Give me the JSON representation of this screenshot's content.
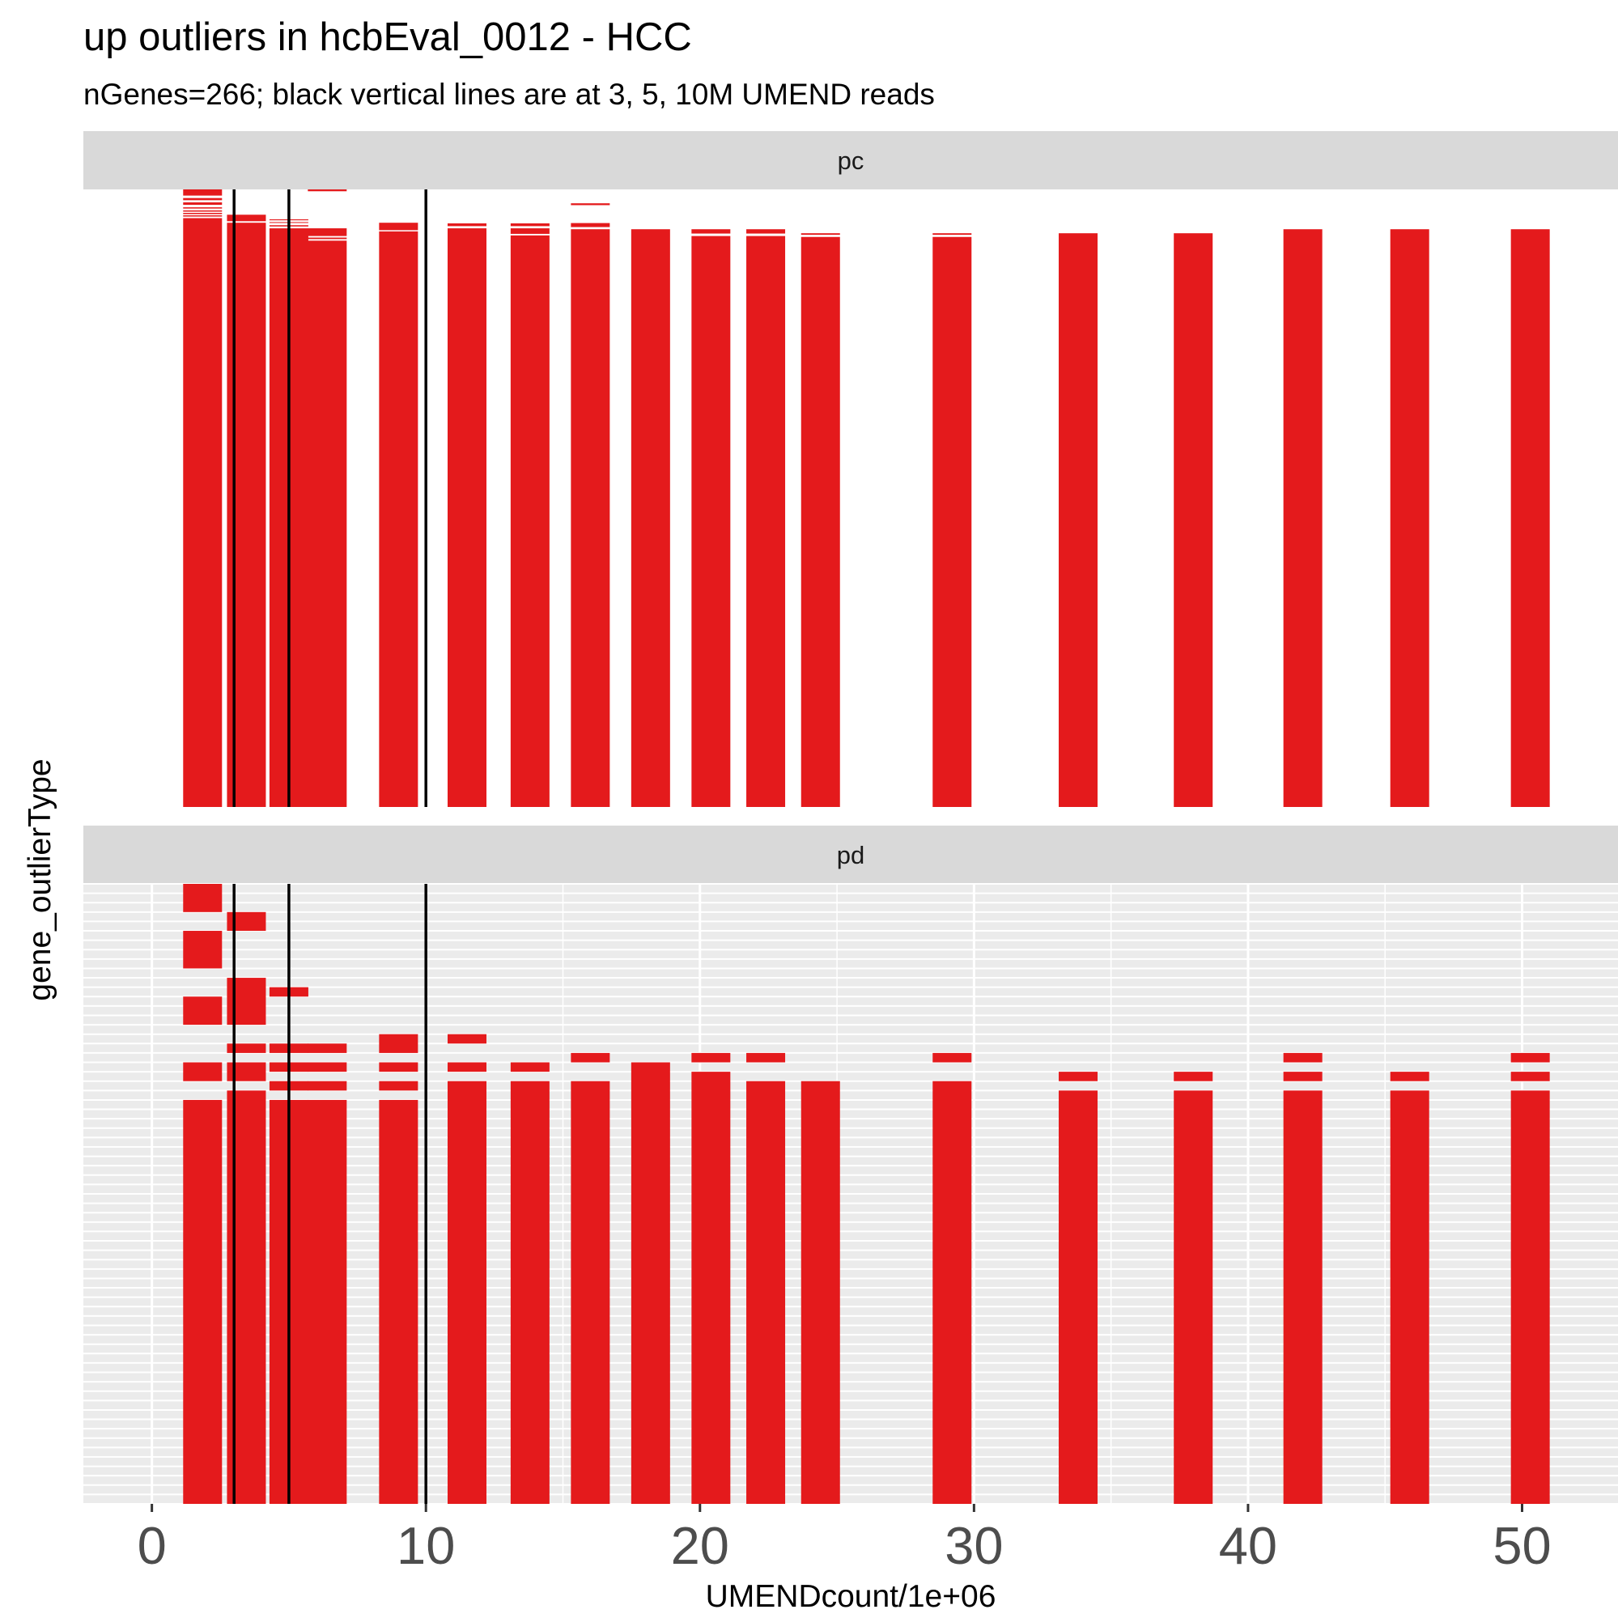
{
  "title": "up outliers in hcbEval_0012 - HCC",
  "subtitle": "nGenes=266; black vertical lines are at 3, 5, 10M UMEND reads",
  "chart_data": {
    "type": "heatmap",
    "xlabel": "UMENDcount/1e+06",
    "ylabel": "gene_outlierType",
    "xlim": [
      -2.5,
      53.5
    ],
    "x_ticks": [
      0,
      10,
      20,
      30,
      40,
      50
    ],
    "x_tick_labels": [
      "0",
      "10",
      "20",
      "30",
      "40",
      "50"
    ],
    "vlines": [
      3,
      5,
      10
    ],
    "fill_color": "#e41a1c",
    "vline_color": "#000000",
    "facets": [
      {
        "name": "pc",
        "row_count": 200,
        "grid": false,
        "columns": [
          {
            "x": 1.85,
            "segments": [
              [
                0,
                2
              ],
              [
                2.8,
                3.5
              ],
              [
                4.2,
                5
              ],
              [
                5.8,
                6.2
              ],
              [
                6.8,
                7.2
              ],
              [
                7.6,
                8
              ],
              [
                8.4,
                8.8
              ],
              [
                9.3,
                200
              ]
            ]
          },
          {
            "x": 3.45,
            "segments": [
              [
                8.2,
                10.3
              ],
              [
                10.8,
                200
              ]
            ]
          },
          {
            "x": 5.0,
            "segments": [
              [
                9.7,
                10
              ],
              [
                10.6,
                10.8
              ],
              [
                11.6,
                12
              ],
              [
                12.6,
                200
              ]
            ]
          },
          {
            "x": 6.4,
            "segments": [
              [
                0,
                0.6
              ],
              [
                12.6,
                15.1
              ],
              [
                15.6,
                16.1
              ],
              [
                16.6,
                200
              ]
            ]
          },
          {
            "x": 9.0,
            "segments": [
              [
                10.8,
                13.2
              ],
              [
                13.6,
                200
              ]
            ]
          },
          {
            "x": 11.5,
            "segments": [
              [
                11.0,
                11.9
              ],
              [
                12.6,
                200
              ]
            ]
          },
          {
            "x": 13.8,
            "segments": [
              [
                11.0,
                11.9
              ],
              [
                12.6,
                14.4
              ],
              [
                14.9,
                200
              ]
            ]
          },
          {
            "x": 16.0,
            "segments": [
              [
                4.5,
                5.1
              ],
              [
                10.9,
                12.2
              ],
              [
                12.9,
                200
              ]
            ]
          },
          {
            "x": 18.2,
            "segments": [
              [
                12.9,
                200
              ]
            ]
          },
          {
            "x": 20.4,
            "segments": [
              [
                12.9,
                14.3
              ],
              [
                15.1,
                200
              ]
            ]
          },
          {
            "x": 22.4,
            "segments": [
              [
                12.9,
                14.3
              ],
              [
                15.1,
                200
              ]
            ]
          },
          {
            "x": 24.4,
            "segments": [
              [
                14.2,
                14.7
              ],
              [
                15.4,
                200
              ]
            ]
          },
          {
            "x": 29.2,
            "segments": [
              [
                14.2,
                14.7
              ],
              [
                15.4,
                200
              ]
            ]
          },
          {
            "x": 33.8,
            "segments": [
              [
                14.2,
                200
              ]
            ]
          },
          {
            "x": 38.0,
            "segments": [
              [
                14.2,
                200
              ]
            ]
          },
          {
            "x": 42.0,
            "segments": [
              [
                12.9,
                200
              ]
            ]
          },
          {
            "x": 45.9,
            "segments": [
              [
                12.9,
                200
              ]
            ]
          },
          {
            "x": 50.3,
            "segments": [
              [
                12.9,
                200
              ]
            ]
          }
        ]
      },
      {
        "name": "pd",
        "row_count": 66,
        "grid": true,
        "columns": [
          {
            "x": 1.85,
            "segments": [
              [
                0,
                3
              ],
              [
                5,
                9
              ],
              [
                12,
                15
              ],
              [
                19,
                21
              ],
              [
                23,
                66
              ]
            ]
          },
          {
            "x": 3.45,
            "segments": [
              [
                3,
                5
              ],
              [
                10,
                15
              ],
              [
                17,
                18
              ],
              [
                19,
                21
              ],
              [
                22,
                66
              ]
            ]
          },
          {
            "x": 5.0,
            "segments": [
              [
                11,
                12
              ],
              [
                17,
                18
              ],
              [
                19,
                20
              ],
              [
                21,
                22
              ],
              [
                23,
                66
              ]
            ]
          },
          {
            "x": 6.4,
            "segments": [
              [
                17,
                18
              ],
              [
                19,
                20
              ],
              [
                21,
                22
              ],
              [
                23,
                66
              ]
            ]
          },
          {
            "x": 9.0,
            "segments": [
              [
                16,
                18
              ],
              [
                19,
                20
              ],
              [
                21,
                22
              ],
              [
                23,
                66
              ]
            ]
          },
          {
            "x": 11.5,
            "segments": [
              [
                16,
                17
              ],
              [
                19,
                20
              ],
              [
                21,
                66
              ]
            ]
          },
          {
            "x": 13.8,
            "segments": [
              [
                19,
                20
              ],
              [
                21,
                66
              ]
            ]
          },
          {
            "x": 16.0,
            "segments": [
              [
                18,
                19
              ],
              [
                21,
                66
              ]
            ]
          },
          {
            "x": 18.2,
            "segments": [
              [
                19,
                66
              ]
            ]
          },
          {
            "x": 20.4,
            "segments": [
              [
                18,
                19
              ],
              [
                20,
                66
              ]
            ]
          },
          {
            "x": 22.4,
            "segments": [
              [
                18,
                19
              ],
              [
                21,
                66
              ]
            ]
          },
          {
            "x": 24.4,
            "segments": [
              [
                21,
                66
              ]
            ]
          },
          {
            "x": 29.2,
            "segments": [
              [
                18,
                19
              ],
              [
                21,
                66
              ]
            ]
          },
          {
            "x": 33.8,
            "segments": [
              [
                20,
                21
              ],
              [
                22,
                66
              ]
            ]
          },
          {
            "x": 38.0,
            "segments": [
              [
                20,
                21
              ],
              [
                22,
                66
              ]
            ]
          },
          {
            "x": 42.0,
            "segments": [
              [
                18,
                19
              ],
              [
                20,
                21
              ],
              [
                22,
                66
              ]
            ]
          },
          {
            "x": 45.9,
            "segments": [
              [
                20,
                21
              ],
              [
                22,
                66
              ]
            ]
          },
          {
            "x": 50.3,
            "segments": [
              [
                18,
                19
              ],
              [
                20,
                21
              ],
              [
                22,
                66
              ]
            ]
          }
        ]
      }
    ]
  }
}
